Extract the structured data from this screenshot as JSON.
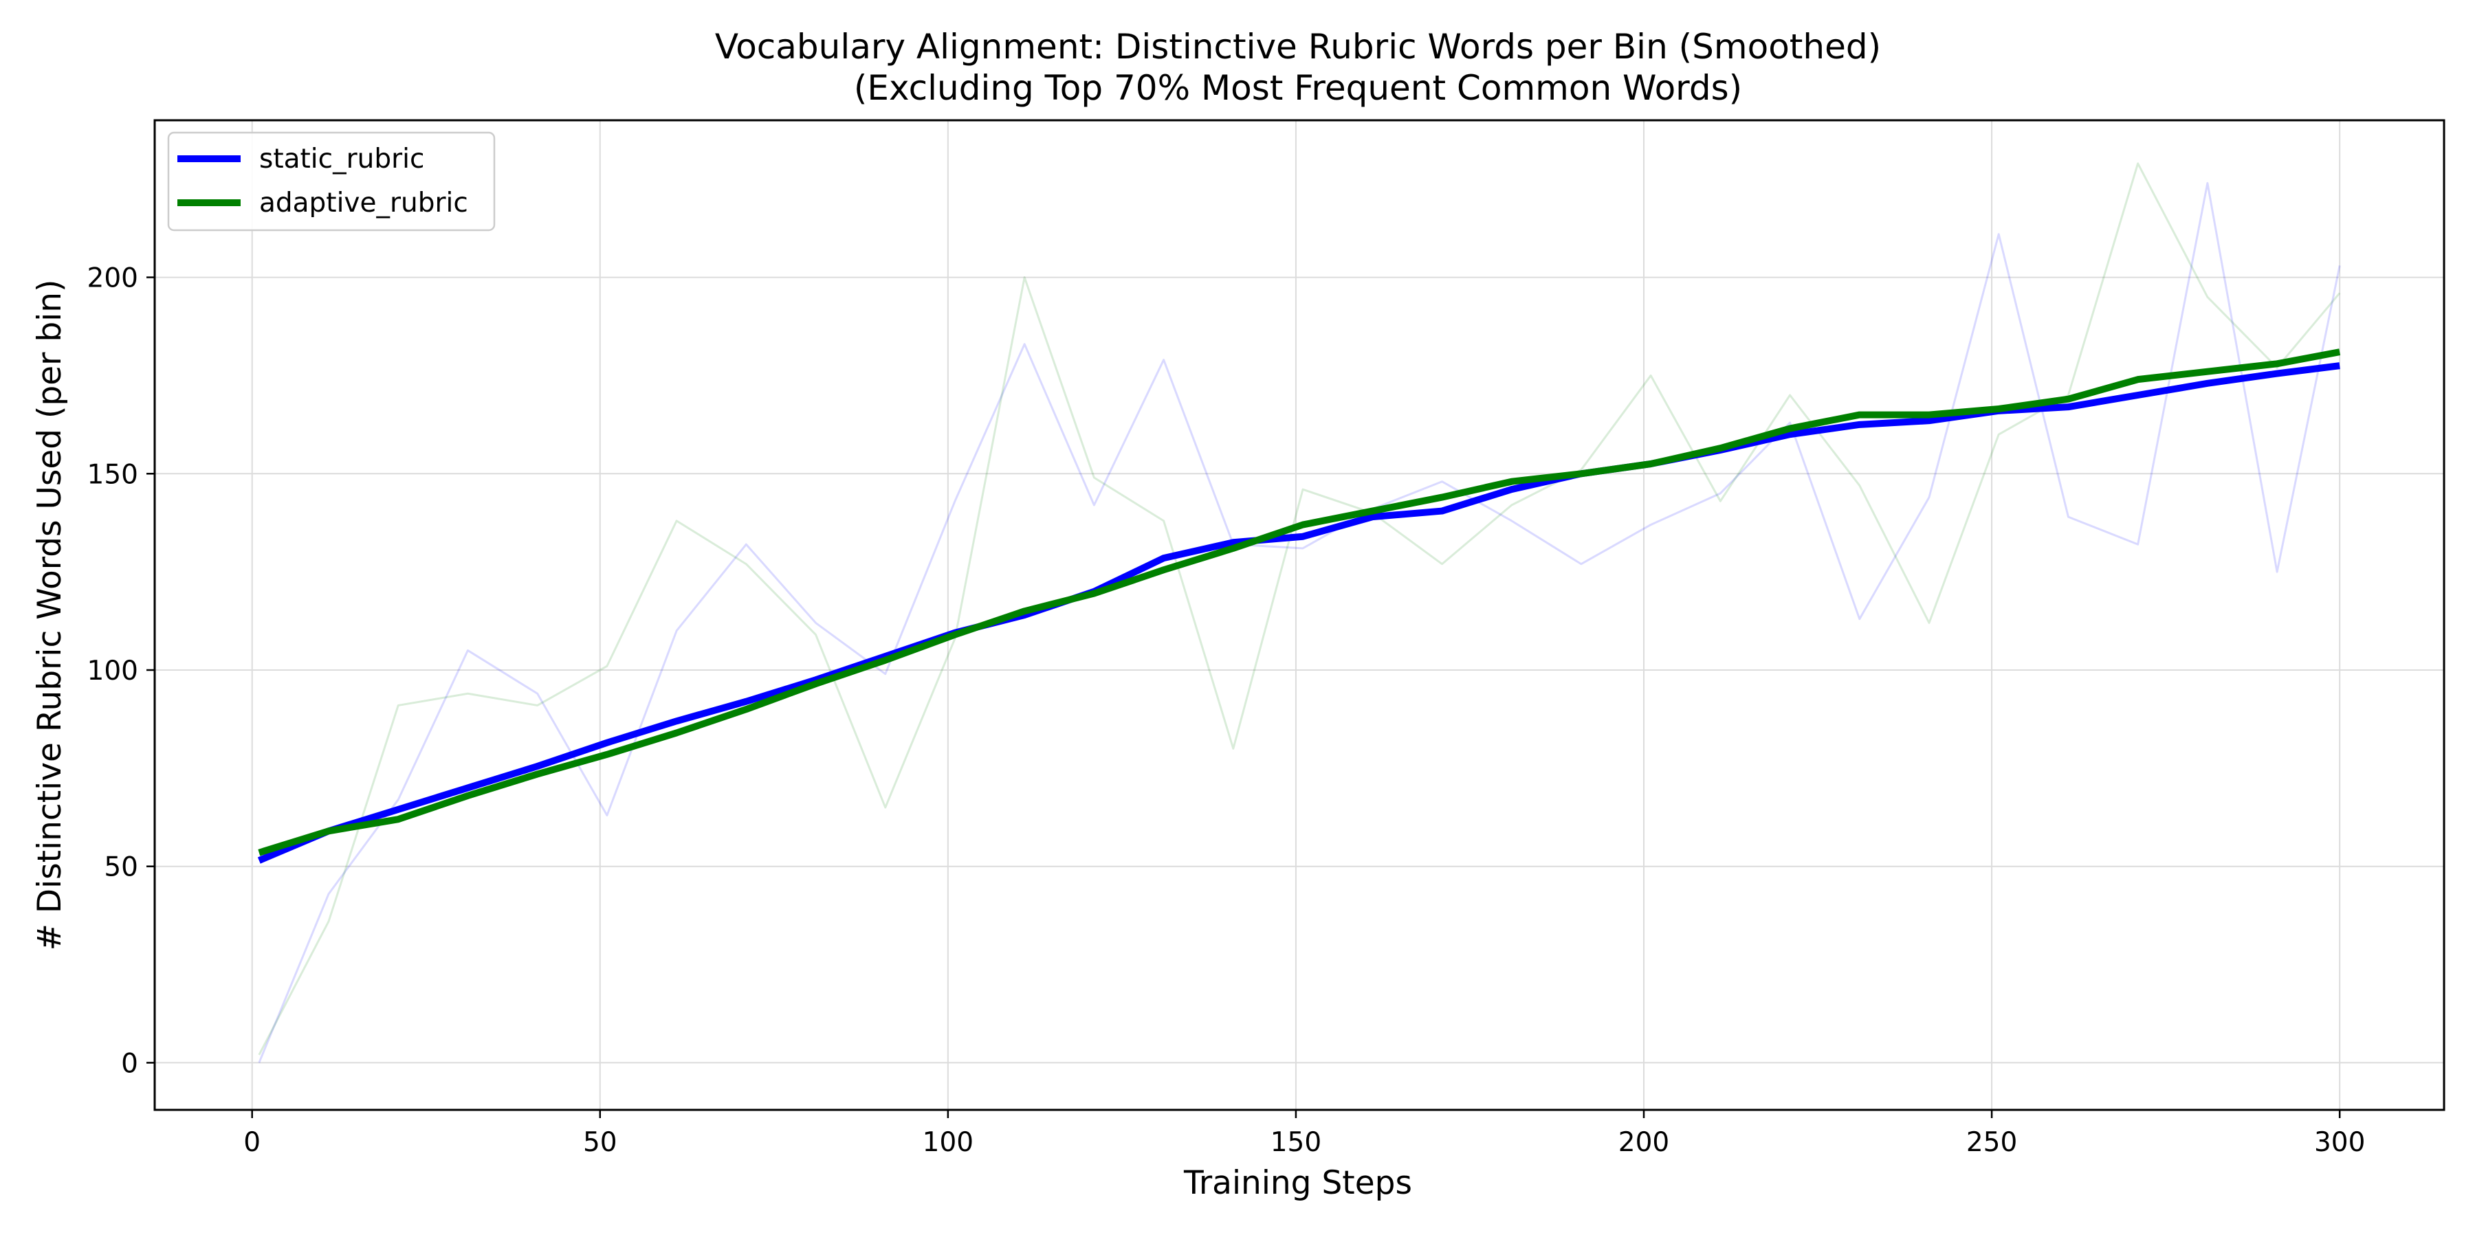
{
  "chart_data": {
    "type": "line",
    "title": "Vocabulary Alignment: Distinctive Rubric Words per Bin (Smoothed)",
    "subtitle": "(Excluding Top 70% Most Frequent Common Words)",
    "xlabel": "Training Steps",
    "ylabel": "# Distinctive Rubric Words Used (per bin)",
    "xlim": [
      -14,
      315
    ],
    "ylim": [
      -12,
      240
    ],
    "xticks": [
      0,
      50,
      100,
      150,
      200,
      250,
      300
    ],
    "yticks": [
      0,
      50,
      100,
      150,
      200
    ],
    "grid": true,
    "legend_position": "top-left",
    "x": [
      1,
      11,
      21,
      31,
      41,
      51,
      61,
      71,
      81,
      91,
      101,
      111,
      121,
      131,
      141,
      151,
      161,
      171,
      181,
      191,
      201,
      211,
      221,
      231,
      241,
      251,
      261,
      271,
      281,
      291,
      300
    ],
    "series": [
      {
        "name": "static_rubric",
        "color": "#0000ff",
        "values": [
          51.5,
          59,
          64.5,
          70,
          75.5,
          81.5,
          87,
          92,
          97.5,
          103.5,
          109.5,
          114,
          120,
          128.5,
          132.5,
          134,
          139,
          140.5,
          146,
          150,
          152.5,
          156,
          160,
          162.5,
          163.5,
          166,
          167,
          170,
          173,
          175.5,
          177.5
        ],
        "raw_values": [
          0,
          43,
          67,
          105,
          94,
          63,
          110,
          132,
          112,
          99,
          143,
          183,
          142,
          179,
          132,
          131,
          141,
          148,
          138,
          127,
          137,
          145,
          163,
          113,
          144,
          211,
          139,
          132,
          224,
          125,
          203
        ]
      },
      {
        "name": "adaptive_rubric",
        "color": "#008000",
        "values": [
          53.5,
          59,
          62,
          68,
          73.5,
          78.5,
          84,
          90,
          96.5,
          102.5,
          109,
          115,
          119.5,
          125.5,
          131,
          137,
          140.5,
          144,
          148,
          150,
          152.5,
          156.5,
          161.5,
          165,
          165,
          166.5,
          169,
          174,
          176,
          178,
          181
        ],
        "raw_values": [
          2,
          36,
          91,
          94,
          91,
          101,
          138,
          127,
          109,
          65,
          108,
          200,
          149,
          138,
          80,
          146,
          140,
          127,
          142,
          151,
          175,
          143,
          170,
          147,
          112,
          160,
          170,
          229,
          195,
          177,
          196
        ]
      }
    ]
  }
}
